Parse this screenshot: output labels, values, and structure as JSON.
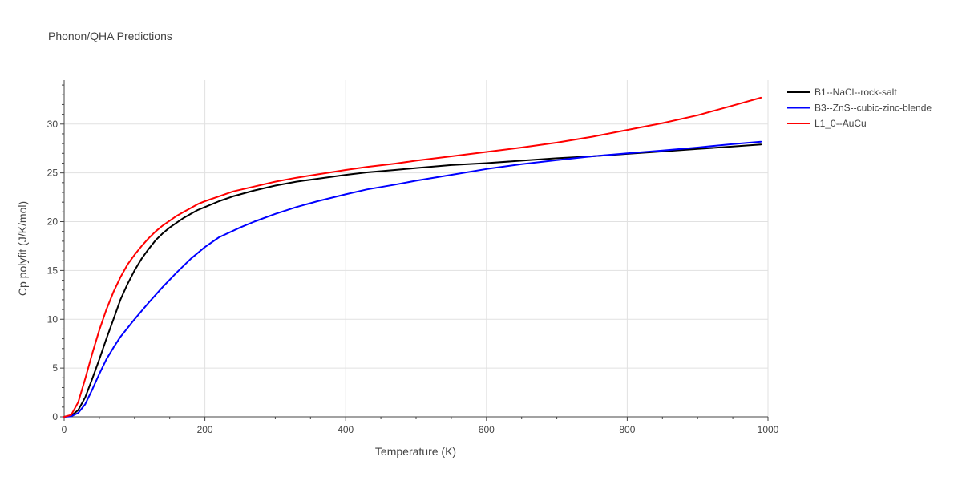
{
  "chart_data": {
    "type": "line",
    "title": "Phonon/QHA Predictions",
    "xlabel": "Temperature (K)",
    "ylabel": "Cp polyfit (J/K/mol)",
    "xlim": [
      0,
      1000
    ],
    "ylim": [
      0,
      34.5
    ],
    "xticks": [
      0,
      200,
      400,
      600,
      800,
      1000
    ],
    "yticks": [
      0,
      5,
      10,
      15,
      20,
      25,
      30
    ],
    "grid": true,
    "legend_position": "top-right outside",
    "series": [
      {
        "name": "B1--NaCl--rock-salt",
        "color": "#000000",
        "x": [
          0,
          10,
          20,
          30,
          40,
          50,
          60,
          70,
          80,
          90,
          100,
          110,
          120,
          130,
          140,
          150,
          160,
          170,
          180,
          190,
          200,
          220,
          240,
          270,
          300,
          330,
          360,
          400,
          430,
          470,
          500,
          550,
          600,
          650,
          700,
          750,
          800,
          850,
          900,
          950,
          990
        ],
        "y": [
          0,
          0.1,
          0.7,
          2.0,
          3.9,
          5.9,
          8.0,
          10.0,
          12.0,
          13.6,
          15.0,
          16.2,
          17.2,
          18.1,
          18.8,
          19.4,
          19.9,
          20.4,
          20.8,
          21.2,
          21.5,
          22.1,
          22.6,
          23.2,
          23.7,
          24.1,
          24.4,
          24.8,
          25.05,
          25.3,
          25.5,
          25.8,
          26.0,
          26.25,
          26.5,
          26.7,
          26.95,
          27.2,
          27.45,
          27.7,
          27.9
        ]
      },
      {
        "name": "B3--ZnS--cubic-zinc-blende",
        "color": "#0000ff",
        "x": [
          0,
          10,
          20,
          30,
          40,
          50,
          60,
          70,
          80,
          90,
          100,
          120,
          140,
          160,
          180,
          200,
          220,
          250,
          270,
          300,
          330,
          360,
          400,
          430,
          470,
          500,
          550,
          600,
          650,
          700,
          750,
          800,
          850,
          900,
          950,
          990
        ],
        "y": [
          0,
          0.05,
          0.4,
          1.3,
          2.8,
          4.4,
          5.9,
          7.1,
          8.2,
          9.1,
          10.0,
          11.7,
          13.3,
          14.8,
          16.2,
          17.4,
          18.4,
          19.4,
          20.0,
          20.8,
          21.5,
          22.1,
          22.8,
          23.3,
          23.8,
          24.2,
          24.8,
          25.4,
          25.9,
          26.3,
          26.7,
          27.0,
          27.3,
          27.6,
          27.95,
          28.2
        ]
      },
      {
        "name": "L1_0--AuCu",
        "color": "#ff0000",
        "x": [
          0,
          10,
          20,
          30,
          40,
          50,
          60,
          70,
          80,
          90,
          100,
          110,
          120,
          130,
          140,
          150,
          160,
          170,
          180,
          190,
          200,
          220,
          240,
          270,
          300,
          330,
          360,
          400,
          430,
          470,
          500,
          550,
          600,
          650,
          700,
          750,
          800,
          850,
          900,
          950,
          990
        ],
        "y": [
          0,
          0.2,
          1.5,
          3.9,
          6.5,
          8.9,
          11.0,
          12.8,
          14.3,
          15.6,
          16.6,
          17.5,
          18.3,
          19.0,
          19.6,
          20.1,
          20.6,
          21.0,
          21.4,
          21.8,
          22.1,
          22.6,
          23.1,
          23.6,
          24.1,
          24.5,
          24.85,
          25.3,
          25.6,
          25.95,
          26.25,
          26.7,
          27.15,
          27.6,
          28.1,
          28.7,
          29.4,
          30.1,
          30.9,
          31.9,
          32.7
        ]
      }
    ]
  }
}
